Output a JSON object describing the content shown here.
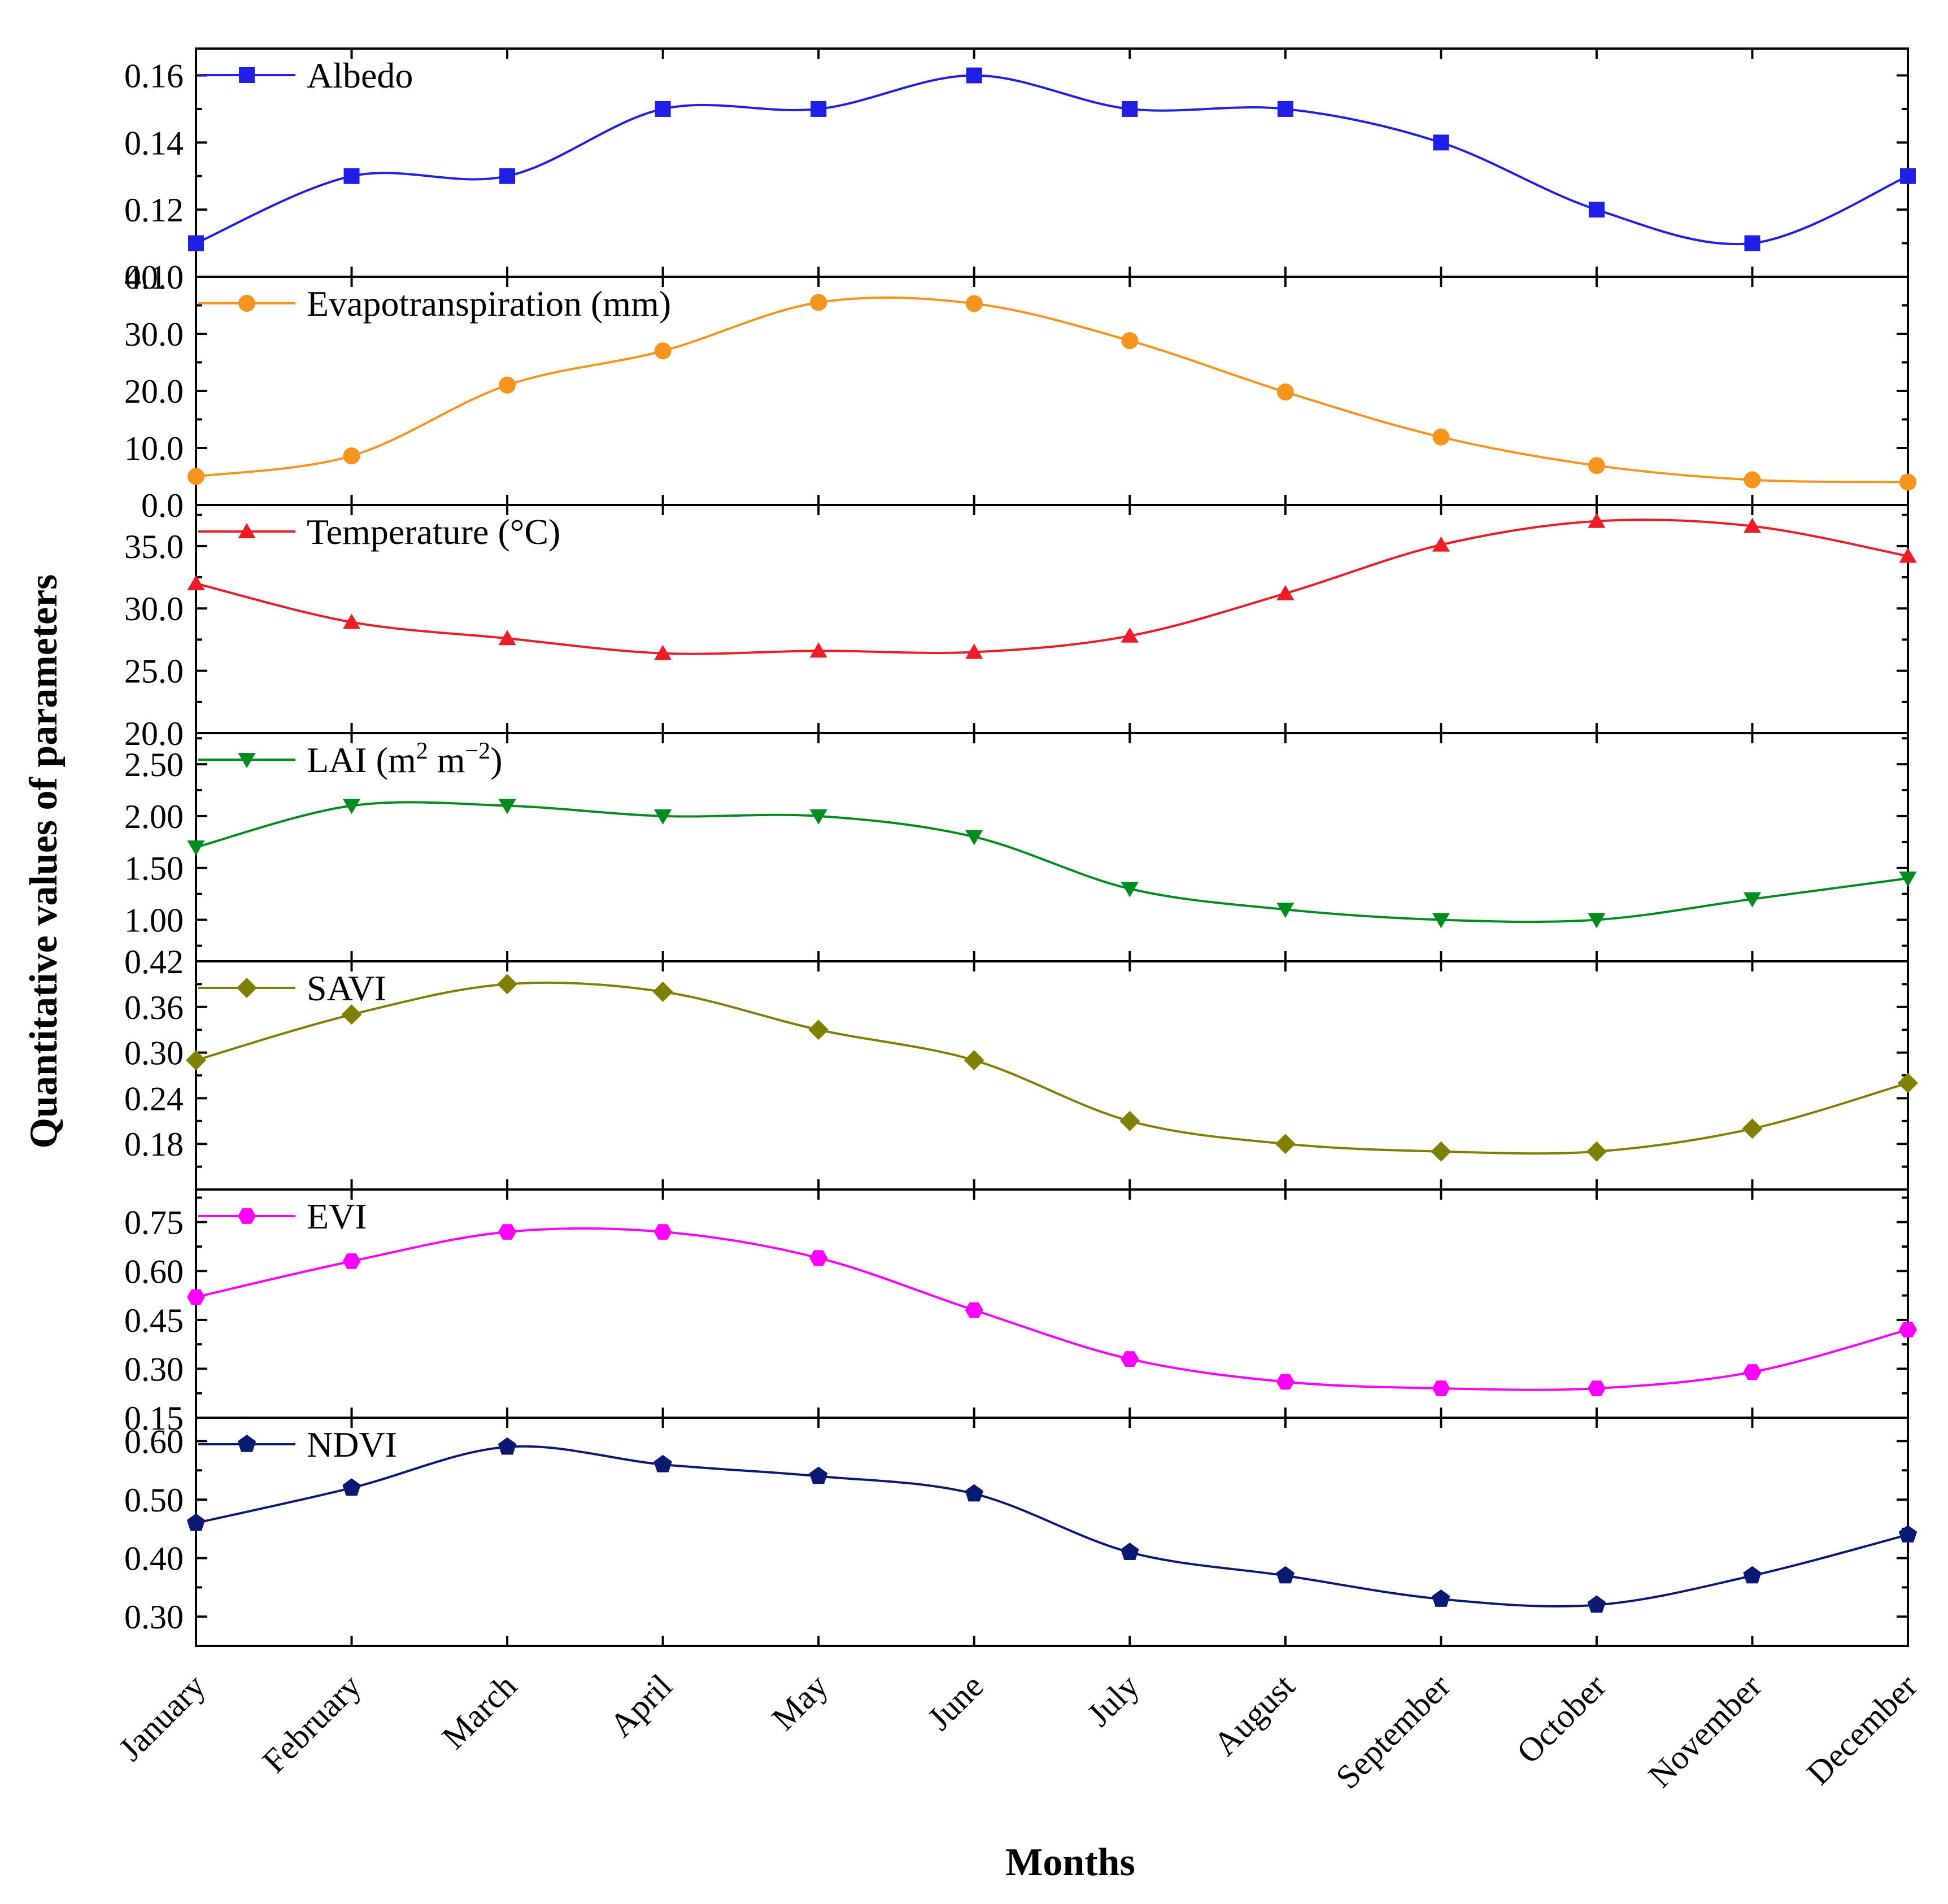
{
  "chart_data": {
    "type": "line",
    "xlabel": "Months",
    "ylabel": "Quantitative values of parameters",
    "categories": [
      "January",
      "February",
      "March",
      "April",
      "May",
      "June",
      "July",
      "August",
      "September",
      "October",
      "November",
      "December"
    ],
    "panels": [
      {
        "name": "Albedo",
        "legend": "Albedo",
        "color": "#1f1fe6",
        "marker": "square",
        "ylim": [
          0.1,
          0.168
        ],
        "ticks": [
          "0.10",
          "0.12",
          "0.14",
          "0.16"
        ],
        "tick_values": [
          0.1,
          0.12,
          0.14,
          0.16
        ],
        "values": [
          0.11,
          0.13,
          0.13,
          0.15,
          0.15,
          0.16,
          0.15,
          0.15,
          0.14,
          0.12,
          0.11,
          0.13
        ]
      },
      {
        "name": "Evapotranspiration",
        "legend": "Evapotranspiration (mm)",
        "color": "#f7941d",
        "marker": "circle",
        "ylim": [
          0.0,
          40.0
        ],
        "ticks": [
          "0.0",
          "10.0",
          "20.0",
          "30.0",
          "40.0"
        ],
        "tick_values": [
          0,
          10,
          20,
          30,
          40
        ],
        "values": [
          5.0,
          8.6,
          21.0,
          27.0,
          35.5,
          35.3,
          28.8,
          19.8,
          11.9,
          6.9,
          4.4,
          4.0
        ]
      },
      {
        "name": "Temperature",
        "legend": "Temperature (°C)",
        "color": "#ee1c25",
        "marker": "triangle-up",
        "ylim": [
          20.0,
          38.3
        ],
        "ticks": [
          "20.0",
          "25.0",
          "30.0",
          "35.0"
        ],
        "tick_values": [
          20,
          25,
          30,
          35
        ],
        "values": [
          32.0,
          28.9,
          27.6,
          26.4,
          26.6,
          26.5,
          27.8,
          31.2,
          35.1,
          37.0,
          36.6,
          34.2
        ]
      },
      {
        "name": "LAI",
        "legend": "LAI",
        "legend_unit_base": "(m",
        "legend_unit_sup1": "2",
        "legend_unit_mid": " m",
        "legend_unit_sup2": "−2",
        "legend_unit_end": ")",
        "color": "#008c1e",
        "marker": "triangle-down",
        "ylim": [
          0.6,
          2.8
        ],
        "ticks": [
          "1.00",
          "1.50",
          "2.00",
          "2.50"
        ],
        "tick_values": [
          1.0,
          1.5,
          2.0,
          2.5
        ],
        "values": [
          1.7,
          2.1,
          2.1,
          2.0,
          2.0,
          1.8,
          1.3,
          1.1,
          1.0,
          1.0,
          1.2,
          1.4
        ]
      },
      {
        "name": "SAVI",
        "legend": "SAVI",
        "color": "#808000",
        "marker": "diamond",
        "ylim": [
          0.12,
          0.42
        ],
        "ticks": [
          "0.18",
          "0.24",
          "0.30",
          "0.36",
          "0.42"
        ],
        "tick_values": [
          0.18,
          0.24,
          0.3,
          0.36,
          0.42
        ],
        "values": [
          0.29,
          0.35,
          0.39,
          0.38,
          0.33,
          0.29,
          0.21,
          0.18,
          0.17,
          0.17,
          0.2,
          0.26
        ]
      },
      {
        "name": "EVI",
        "legend": "EVI",
        "color": "#ff00ff",
        "marker": "hexagon",
        "ylim": [
          0.15,
          0.85
        ],
        "ticks": [
          "0.15",
          "0.30",
          "0.45",
          "0.60",
          "0.75"
        ],
        "tick_values": [
          0.15,
          0.3,
          0.45,
          0.6,
          0.75
        ],
        "values": [
          0.52,
          0.63,
          0.72,
          0.72,
          0.64,
          0.48,
          0.33,
          0.26,
          0.24,
          0.24,
          0.29,
          0.42
        ]
      },
      {
        "name": "NDVI",
        "legend": "NDVI",
        "color": "#0a1a73",
        "marker": "pentagon",
        "ylim": [
          0.25,
          0.64
        ],
        "ticks": [
          "0.30",
          "0.40",
          "0.50",
          "0.60"
        ],
        "tick_values": [
          0.3,
          0.4,
          0.5,
          0.6
        ],
        "values": [
          0.46,
          0.52,
          0.59,
          0.56,
          0.54,
          0.51,
          0.41,
          0.37,
          0.33,
          0.32,
          0.37,
          0.44
        ]
      }
    ]
  }
}
